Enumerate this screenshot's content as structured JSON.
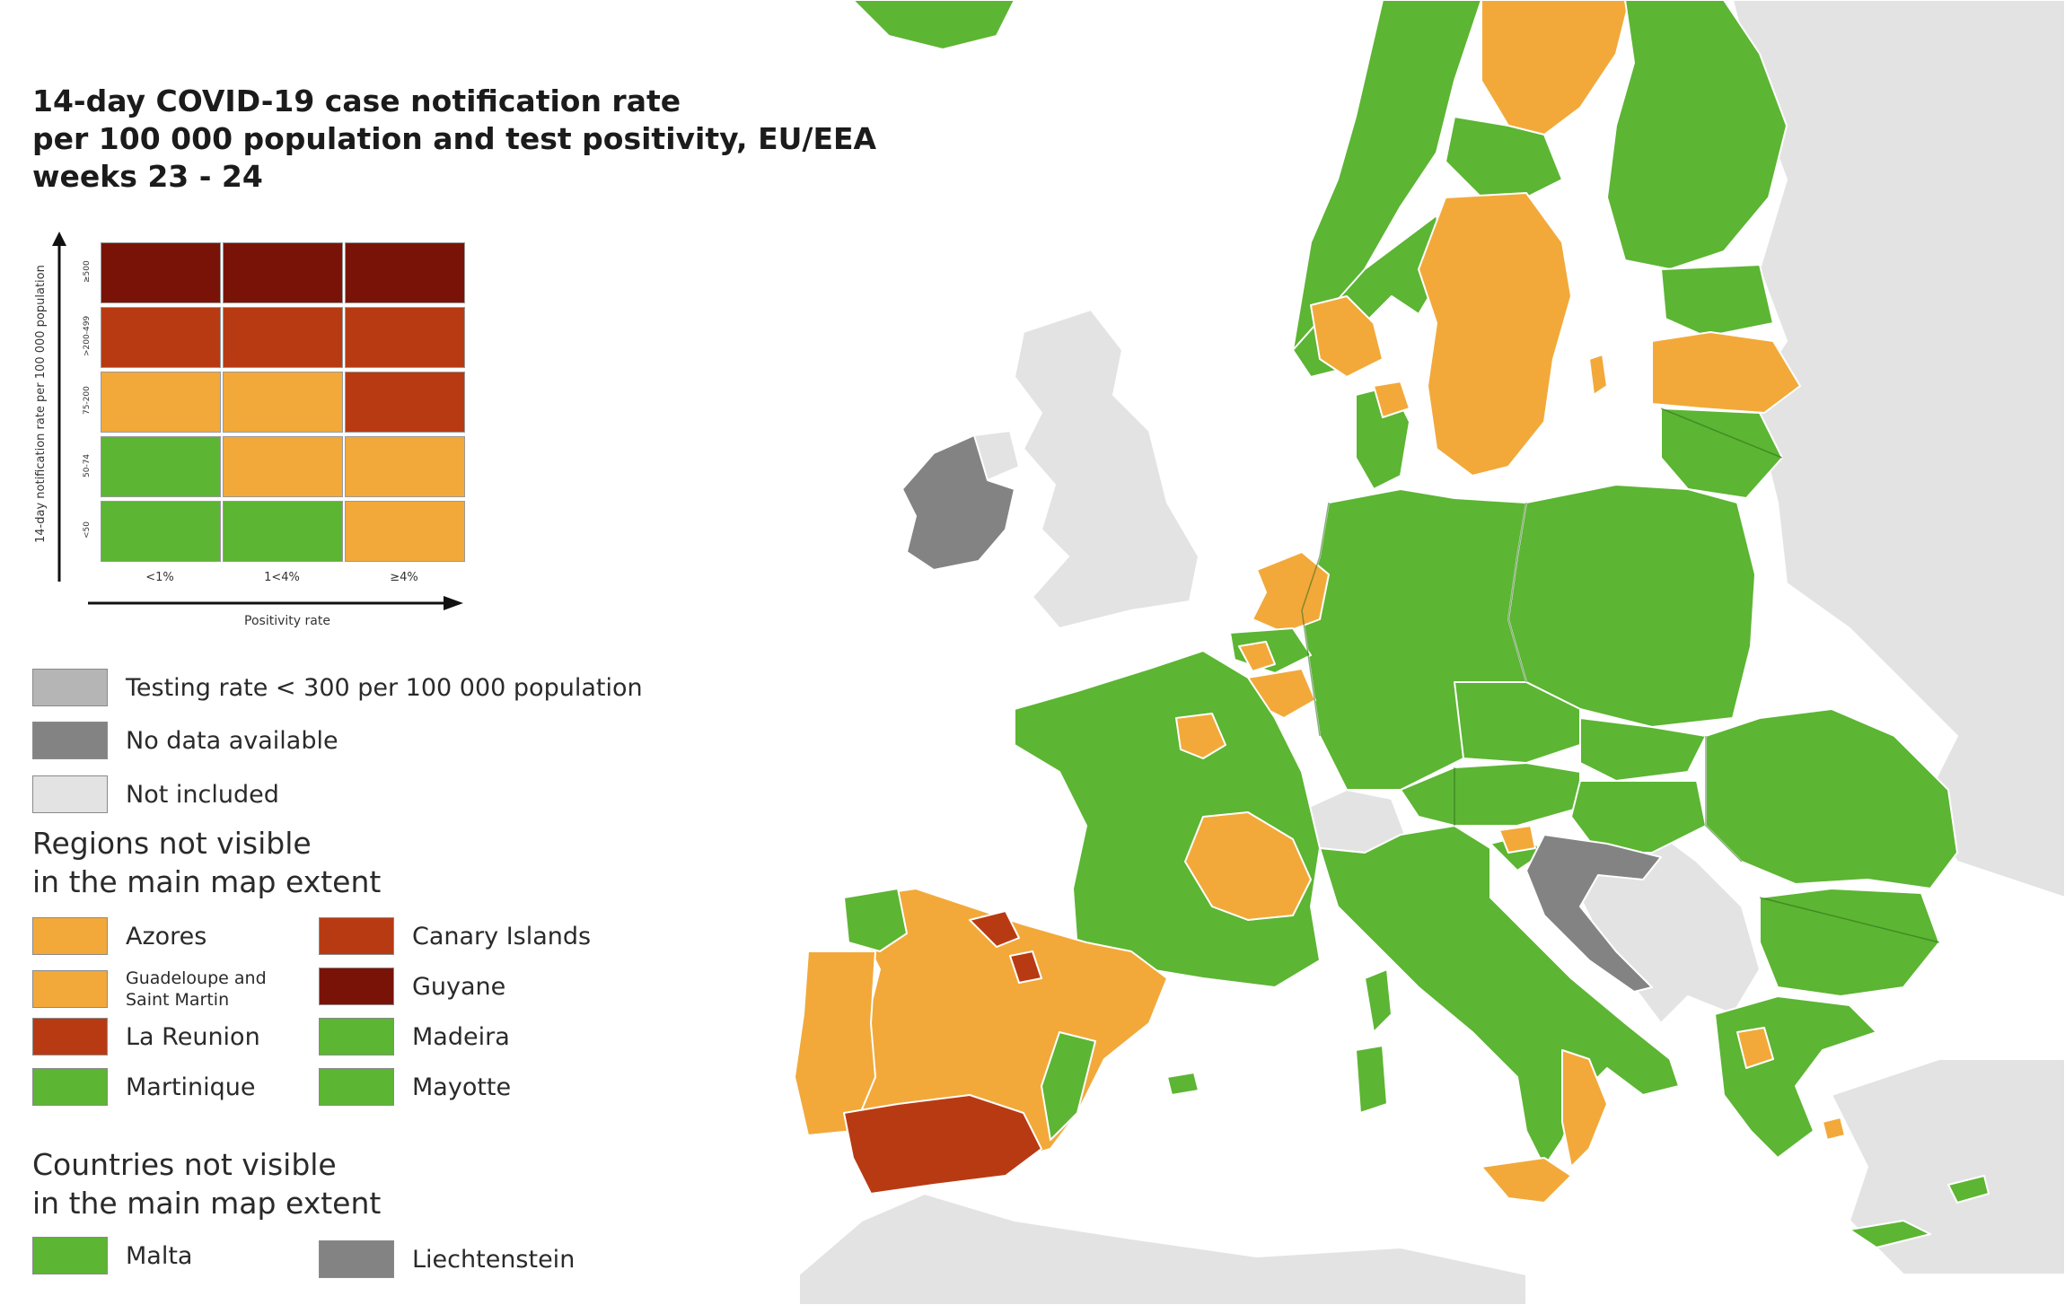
{
  "title": {
    "line1": "14-day COVID-19 case notification rate",
    "line2": "per 100 000 population and test positivity, EU/EEA",
    "line3": "weeks 23 - 24"
  },
  "matrix": {
    "y_axis_label": "14-day notification rate per 100 000 population",
    "x_axis_label": "Positivity rate",
    "columns": [
      "<1%",
      "1<4%",
      "≥4%"
    ],
    "rows": [
      {
        "label": "≥500",
        "colors": [
          "#7a1307",
          "#7a1307",
          "#7a1307"
        ]
      },
      {
        "label": ">200-499",
        "colors": [
          "#b83a13",
          "#b83a13",
          "#b83a13"
        ]
      },
      {
        "label": "75-200",
        "colors": [
          "#f2a93a",
          "#f2a93a",
          "#b83a13"
        ]
      },
      {
        "label": "50-74",
        "colors": [
          "#5cb533",
          "#f2a93a",
          "#f2a93a"
        ]
      },
      {
        "label": "<50",
        "colors": [
          "#5cb533",
          "#5cb533",
          "#f2a93a"
        ]
      }
    ]
  },
  "legend": {
    "testing_rate": {
      "label": "Testing rate < 300 per 100 000 population",
      "color": "#b5b5b5"
    },
    "no_data": {
      "label": "No data available",
      "color": "#838383"
    },
    "not_included": {
      "label": "Not included",
      "color": "#e3e3e3"
    }
  },
  "regions": {
    "heading_line1": "Regions not visible",
    "heading_line2": "in the main map extent",
    "items": [
      {
        "label": "Azores",
        "color": "#f2a93a"
      },
      {
        "label": "Canary Islands",
        "color": "#b83a13"
      },
      {
        "label": "Guadeloupe and Saint Martin",
        "color": "#f2a93a"
      },
      {
        "label": "Guyane",
        "color": "#7a1307"
      },
      {
        "label": "La Reunion",
        "color": "#b83a13"
      },
      {
        "label": "Madeira",
        "color": "#5cb533"
      },
      {
        "label": "Martinique",
        "color": "#5cb533"
      },
      {
        "label": "Mayotte",
        "color": "#5cb533"
      }
    ]
  },
  "countries": {
    "heading_line1": "Countries not visible",
    "heading_line2": "in the main map extent",
    "items": [
      {
        "label": "Malta",
        "color": "#5cb533"
      },
      {
        "label": "Liechtenstein",
        "color": "#838383"
      }
    ]
  },
  "colors": {
    "green": "#5cb533",
    "orange": "#f2a93a",
    "red": "#b83a13",
    "dark_red": "#7a1307",
    "no_data_grey": "#838383",
    "not_included": "#e3e3e3",
    "sea": "#ffffff"
  }
}
